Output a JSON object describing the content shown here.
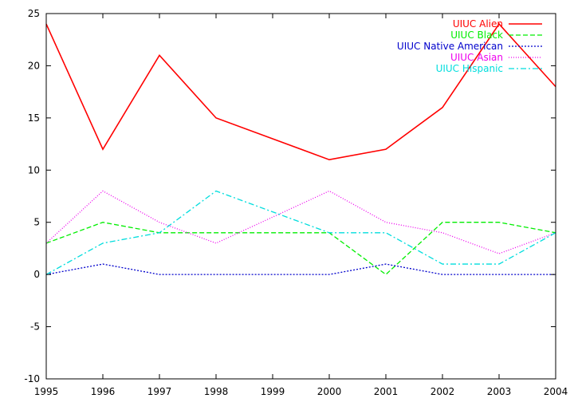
{
  "chart_data": {
    "type": "line",
    "x": [
      1995,
      1996,
      1997,
      1998,
      1999,
      2000,
      2001,
      2002,
      2003,
      2004
    ],
    "xlim": [
      1995,
      2004
    ],
    "ylim": [
      -10,
      25
    ],
    "xticks": [
      "1995",
      "1996",
      "1997",
      "1998",
      "1999",
      "2000",
      "2001",
      "2002",
      "2003",
      "2004"
    ],
    "yticks": [
      "-10",
      "-5",
      "0",
      "5",
      "10",
      "15",
      "20",
      "25"
    ],
    "grid": false,
    "legend_position": "top-right",
    "series": [
      {
        "name": "UIUC Alien",
        "color": "#ff0000",
        "dash": "solid",
        "values": [
          24,
          12,
          21,
          15,
          13,
          11,
          12,
          16,
          24,
          18
        ]
      },
      {
        "name": "UIUC Black",
        "color": "#00ee00",
        "dash": "dashed",
        "values": [
          3,
          5,
          4,
          4,
          4,
          4,
          0,
          5,
          5,
          4
        ]
      },
      {
        "name": "UIUC Native American",
        "color": "#0000cc",
        "dash": "dotted",
        "values": [
          0,
          1,
          0,
          0,
          0,
          0,
          1,
          0,
          0,
          0
        ]
      },
      {
        "name": "UIUC Asian",
        "color": "#ee00ee",
        "dash": "fine-dotted",
        "values": [
          3,
          8,
          5,
          3,
          5.5,
          8,
          5,
          4,
          2,
          4
        ]
      },
      {
        "name": "UIUC Hispanic",
        "color": "#00dddd",
        "dash": "dash-dot",
        "values": [
          0,
          3,
          4,
          8,
          6,
          4,
          4,
          1,
          1,
          4
        ]
      }
    ]
  }
}
